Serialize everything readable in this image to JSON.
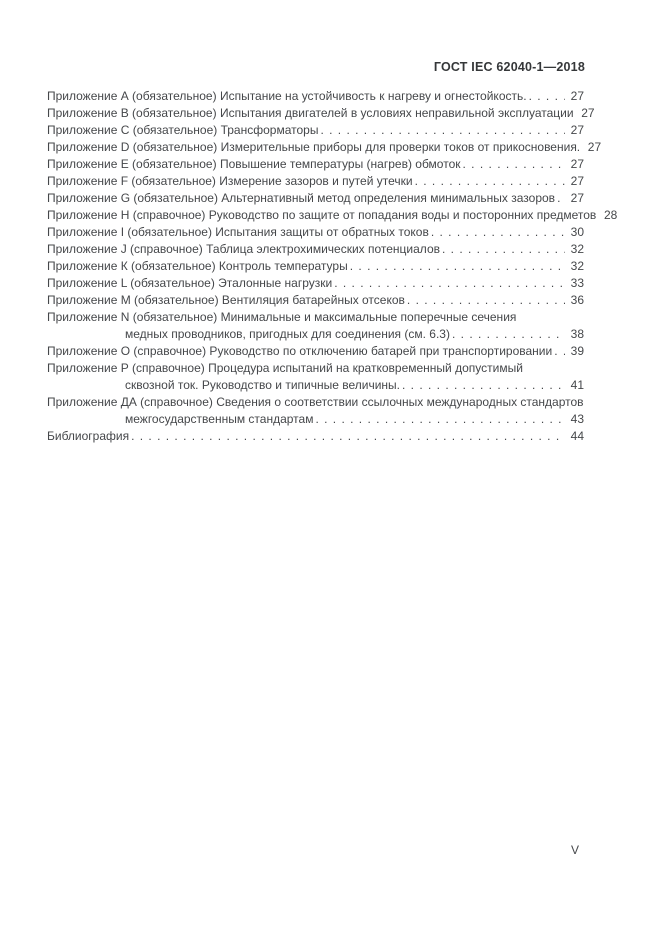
{
  "header": {
    "document_code": "ГОСТ IEC 62040-1—2018"
  },
  "toc": {
    "entries": [
      {
        "text": "Приложение А (обязательное) Испытание на устойчивость к нагреву и огнестойкость.",
        "page": "27"
      },
      {
        "text": "Приложение В (обязательное) Испытания двигателей в условиях неправильной эксплуатации",
        "page": "27"
      },
      {
        "text": "Приложение С (обязательное) Трансформаторы",
        "page": "27"
      },
      {
        "text": "Приложение D (обязательное) Измерительные приборы для проверки токов от прикосновения.",
        "page": "27"
      },
      {
        "text": "Приложение Е (обязательное) Повышение температуры (нагрев) обмоток",
        "page": "27"
      },
      {
        "text": "Приложение F (обязательное) Измерение зазоров и путей утечки",
        "page": "27"
      },
      {
        "text": "Приложение G (обязательное) Альтернативный метод определения минимальных зазоров",
        "page": "27"
      },
      {
        "text": "Приложение Н (справочное) Руководство по защите от попадания воды и посторонних предметов",
        "page": "28"
      },
      {
        "text": "Приложение I (обязательное) Испытания защиты от обратных токов",
        "page": "30"
      },
      {
        "text": "Приложение J (справочное) Таблица электрохимических потенциалов",
        "page": "32"
      },
      {
        "text": "Приложение К (обязательное) Контроль температуры",
        "page": "32"
      },
      {
        "text": "Приложение L (обязательное) Эталонные нагрузки",
        "page": "33"
      },
      {
        "text": "Приложение М (обязательное) Вентиляция батарейных отсеков",
        "page": "36"
      },
      {
        "text": "Приложение N (обязательное) Минимальные и максимальные поперечные сечения",
        "text2": "медных проводников, пригодных для соединения (см. 6.3)",
        "page": "38"
      },
      {
        "text": "Приложение О (справочное) Руководство по отключению батарей при транспортировании",
        "page": "39"
      },
      {
        "text": "Приложение Р (справочное) Процедура испытаний на кратковременный допустимый",
        "text2": "сквозной ток. Руководство и типичные величины.",
        "page": "41"
      },
      {
        "text": "Приложение ДА (справочное) Сведения о соответствии ссылочных международных стандартов",
        "text2": "межгосударственным стандартам ",
        "page": "43"
      },
      {
        "text": "Библиография",
        "page": "44"
      }
    ]
  },
  "footer": {
    "page_number": "V"
  }
}
